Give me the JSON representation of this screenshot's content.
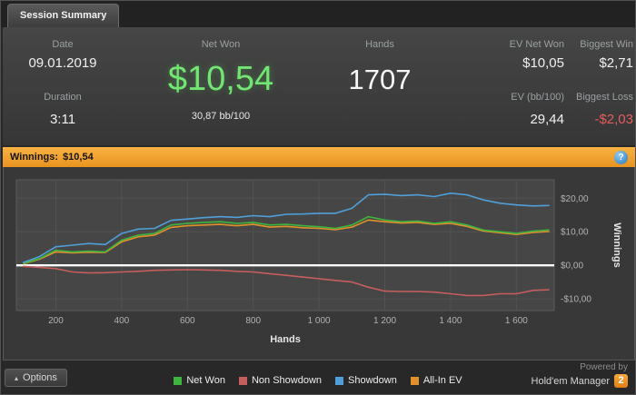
{
  "tab": {
    "title": "Session Summary"
  },
  "header": {
    "date_label": "Date",
    "date_value": "09.01.2019",
    "duration_label": "Duration",
    "duration_value": "3:11",
    "net_won_label": "Net Won",
    "net_won_value": "$10,54",
    "net_won_sub": "30,87 bb/100",
    "hands_label": "Hands",
    "hands_value": "1707",
    "ev_net_won_label": "EV Net Won",
    "ev_net_won_value": "$10,05",
    "ev_bb_label": "EV (bb/100)",
    "ev_bb_value": "29,44",
    "biggest_win_label": "Biggest Win",
    "biggest_win_value": "$2,71",
    "biggest_loss_label": "Biggest Loss",
    "biggest_loss_value": "-$2,03"
  },
  "winnings_bar": {
    "label": "Winnings:",
    "value": "$10,54",
    "help_icon": "?"
  },
  "footer": {
    "options_label": "Options",
    "options_caret": "▴",
    "legend": [
      {
        "label": "Net Won",
        "color": "#3eb53e"
      },
      {
        "label": "Non Showdown",
        "color": "#c75e5e"
      },
      {
        "label": "Showdown",
        "color": "#4f9fd9"
      },
      {
        "label": "All-In EV",
        "color": "#e2902c"
      }
    ],
    "powered_by": "Powered by",
    "brand": "Hold'em Manager",
    "brand_badge": "2"
  },
  "colors": {
    "accent_green": "#72e672",
    "loss_red": "#e25d5d",
    "winnings_bar_orange": "#ee9e2e",
    "zero_line": "#ffffff"
  },
  "chart_data": {
    "type": "line",
    "title": "Winnings: $10,54",
    "xlabel": "Hands",
    "ylabel": "Winnings",
    "xlim": [
      80,
      1715
    ],
    "ylim": [
      -13.5,
      25.5
    ],
    "grid": true,
    "legend_position": "bottom",
    "x_ticks": [
      {
        "v": 200,
        "label": "200"
      },
      {
        "v": 400,
        "label": "400"
      },
      {
        "v": 600,
        "label": "600"
      },
      {
        "v": 800,
        "label": "800"
      },
      {
        "v": 1000,
        "label": "1 000"
      },
      {
        "v": 1200,
        "label": "1 200"
      },
      {
        "v": 1400,
        "label": "1 400"
      },
      {
        "v": 1600,
        "label": "1 600"
      }
    ],
    "y_ticks": [
      {
        "v": 20,
        "label": "$20,00"
      },
      {
        "v": 10,
        "label": "$10,00"
      },
      {
        "v": 0,
        "label": "$0,00"
      },
      {
        "v": -10,
        "label": "-$10,00"
      }
    ],
    "x": [
      100,
      150,
      200,
      250,
      300,
      350,
      400,
      450,
      500,
      550,
      600,
      650,
      700,
      750,
      800,
      850,
      900,
      950,
      1000,
      1050,
      1100,
      1150,
      1200,
      1250,
      1300,
      1350,
      1400,
      1450,
      1500,
      1550,
      1600,
      1650,
      1700
    ],
    "series": [
      {
        "name": "Non Showdown",
        "color": "#c75e5e",
        "values": [
          -0.3,
          -0.6,
          -1.0,
          -2.0,
          -2.3,
          -2.2,
          -2.0,
          -1.8,
          -1.5,
          -1.4,
          -1.3,
          -1.4,
          -1.5,
          -1.8,
          -2.0,
          -2.5,
          -3.0,
          -3.5,
          -4.0,
          -4.5,
          -5.0,
          -6.5,
          -7.7,
          -7.8,
          -7.8,
          -8.0,
          -8.5,
          -9.0,
          -9.0,
          -8.5,
          -8.5,
          -7.5,
          -7.3
        ]
      },
      {
        "name": "All-In EV",
        "color": "#e2902c",
        "values": [
          0.4,
          1.8,
          4.0,
          3.7,
          3.9,
          3.8,
          7.0,
          8.5,
          9.0,
          11.3,
          11.8,
          12.0,
          12.2,
          11.8,
          12.2,
          11.4,
          11.6,
          11.2,
          11.0,
          10.6,
          11.4,
          13.5,
          13.0,
          12.6,
          12.8,
          12.2,
          12.5,
          11.6,
          10.2,
          9.7,
          9.2,
          9.8,
          10.05
        ]
      },
      {
        "name": "Net Won",
        "color": "#3eb53e",
        "values": [
          0.5,
          2.0,
          4.5,
          4.0,
          4.2,
          4.0,
          7.5,
          9.0,
          9.5,
          12.0,
          12.5,
          12.8,
          13.0,
          12.5,
          12.8,
          12.0,
          12.2,
          11.8,
          11.5,
          11.0,
          12.0,
          14.5,
          13.5,
          13.0,
          13.2,
          12.5,
          13.0,
          12.0,
          10.5,
          10.0,
          9.5,
          10.2,
          10.54
        ]
      },
      {
        "name": "Showdown",
        "color": "#4f9fd9",
        "values": [
          0.8,
          2.6,
          5.5,
          6.0,
          6.5,
          6.2,
          9.5,
          10.8,
          11.0,
          13.4,
          13.8,
          14.2,
          14.5,
          14.3,
          14.8,
          14.5,
          15.2,
          15.3,
          15.5,
          15.5,
          17.0,
          21.0,
          21.2,
          20.8,
          21.0,
          20.5,
          21.5,
          21.0,
          19.5,
          18.5,
          18.0,
          17.7,
          17.84
        ]
      }
    ]
  }
}
